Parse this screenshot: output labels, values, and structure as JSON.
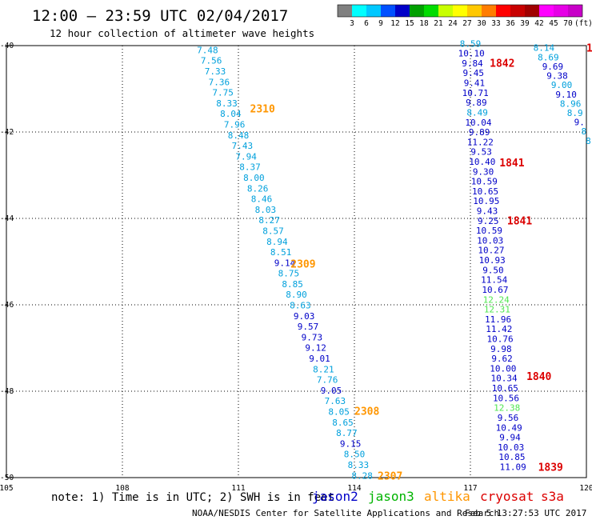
{
  "header": {
    "title": "12:00 – 23:59 UTC 02/04/2017",
    "subtitle": "12 hour collection of altimeter wave heights"
  },
  "legend": {
    "colors": [
      "#808080",
      "#00ffff",
      "#00c8ff",
      "#0050ff",
      "#0000c8",
      "#00a000",
      "#00dc00",
      "#c8ff00",
      "#ffff00",
      "#ffc800",
      "#ff7d00",
      "#ff0000",
      "#c80000",
      "#a00000",
      "#ff00ff",
      "#e600e6",
      "#c800c8"
    ],
    "ticks": [
      "3",
      "6",
      "9",
      "12",
      "15",
      "18",
      "21",
      "24",
      "27",
      "30",
      "33",
      "36",
      "39",
      "42",
      "45",
      "70"
    ],
    "unit": "(ft)"
  },
  "map": {
    "lon_ticks": [
      "105",
      "108",
      "111",
      "114",
      "117",
      "120"
    ],
    "lat_ticks": [
      "-40",
      "-42",
      "-44",
      "-46",
      "-48",
      "-50"
    ],
    "grid": "dotted",
    "lon_range": [
      105,
      120
    ],
    "lat_range": [
      -50,
      -40
    ]
  },
  "satellite_colors": {
    "jason2": "#0000c8",
    "jason3": "#00b400",
    "altika": "#ff9600",
    "cryosat": "#dc0000",
    "s3a": "#dc0000",
    "cyan": "#00a0dc",
    "light_green": "#50e650"
  },
  "tracks": [
    {
      "id": "west-track",
      "color_key": "cyan",
      "values": [
        "7.48",
        "7.56",
        "7.33",
        "7.36",
        "7.75",
        "8.33",
        "8.04",
        "7.96",
        "8.48",
        "7.43",
        "7.94",
        "8.37",
        "8.00",
        "8.26",
        "8.46",
        "8.03",
        "8.27",
        "8.57",
        "8.94",
        "8.51",
        "9.14",
        "8.75",
        "8.85",
        "8.90",
        "8.63",
        "9.03",
        "9.57",
        "9.73",
        "9.12",
        "9.01",
        "8.21",
        "7.76",
        "9.05",
        "7.63",
        "8.05",
        "8.65",
        "8.77",
        "9.15",
        "8.50",
        "8.33",
        "8.28"
      ],
      "value_colors": [
        "cyan",
        "cyan",
        "cyan",
        "cyan",
        "cyan",
        "cyan",
        "cyan",
        "cyan",
        "cyan",
        "cyan",
        "cyan",
        "cyan",
        "cyan",
        "cyan",
        "cyan",
        "cyan",
        "cyan",
        "cyan",
        "cyan",
        "cyan",
        "jason2",
        "cyan",
        "cyan",
        "cyan",
        "cyan",
        "jason2",
        "jason2",
        "jason2",
        "jason2",
        "jason2",
        "cyan",
        "cyan",
        "jason2",
        "cyan",
        "cyan",
        "cyan",
        "cyan",
        "jason2",
        "cyan",
        "cyan",
        "cyan"
      ],
      "lon_start": 110.2,
      "lat_start": -40.1,
      "lon_end": 114.2,
      "lat_end": -49.95
    },
    {
      "id": "middle-track",
      "color_key": "jason2",
      "values": [
        "8.59",
        "10.10",
        "9.84",
        "9.45",
        "9.41",
        "10.71",
        "9.89",
        "8.49",
        "10.04",
        "9.89",
        "11.22",
        "9.53",
        "10.40",
        "9.30",
        "10.59",
        "10.65",
        "10.95",
        "9.43",
        "9.25",
        "10.59",
        "10.03",
        "10.27",
        "10.93",
        "9.50",
        "11.54",
        "10.67",
        "12.24",
        "12.31",
        "11.96",
        "11.42",
        "10.76",
        "9.98",
        "9.62",
        "10.00",
        "10.34",
        "10.65",
        "10.56",
        "12.38",
        "9.56",
        "10.49",
        "9.94",
        "10.03",
        "10.85",
        "11.09"
      ],
      "value_colors": [
        "cyan",
        "jason2",
        "jason2",
        "jason2",
        "jason2",
        "jason2",
        "jason2",
        "cyan",
        "jason2",
        "jason2",
        "jason2",
        "jason2",
        "jason2",
        "jason2",
        "jason2",
        "jason2",
        "jason2",
        "jason2",
        "jason2",
        "jason2",
        "jason2",
        "jason2",
        "jason2",
        "jason2",
        "jason2",
        "jason2",
        "light_green",
        "light_green",
        "jason2",
        "jason2",
        "jason2",
        "jason2",
        "jason2",
        "jason2",
        "jason2",
        "jason2",
        "jason2",
        "light_green",
        "jason2",
        "jason2",
        "jason2",
        "jason2",
        "jason2",
        "jason2"
      ],
      "lon_start": 117.0,
      "lat_start": -39.95,
      "lon_end": 118.1,
      "lat_end": -49.75
    },
    {
      "id": "east-track",
      "color_key": "jason2",
      "values": [
        "8.14",
        "8.69",
        "9.69",
        "9.38",
        "9.00",
        "9.10",
        "8.96",
        "8.9",
        "9.",
        "8",
        "8"
      ],
      "value_colors": [
        "cyan",
        "cyan",
        "jason2",
        "jason2",
        "cyan",
        "jason2",
        "cyan",
        "cyan",
        "jason2",
        "cyan",
        "cyan"
      ],
      "lon_start": 118.9,
      "lat_start": -40.05,
      "lon_end": 120.05,
      "lat_end": -42.2
    }
  ],
  "pass_labels": [
    {
      "text": "2310",
      "color_key": "altika",
      "lon": 111.3,
      "lat": -41.45
    },
    {
      "text": "2309",
      "color_key": "altika",
      "lon": 112.35,
      "lat": -45.05
    },
    {
      "text": "2308",
      "color_key": "altika",
      "lon": 114.0,
      "lat": -48.45
    },
    {
      "text": "2307",
      "color_key": "altika",
      "lon": 114.6,
      "lat": -49.95
    },
    {
      "text": "1842",
      "color_key": "cryosat",
      "lon": 117.5,
      "lat": -40.4
    },
    {
      "text": "1841",
      "color_key": "cryosat",
      "lon": 117.75,
      "lat": -42.7
    },
    {
      "text": "1841",
      "color_key": "cryosat",
      "lon": 117.95,
      "lat": -44.05
    },
    {
      "text": "1840",
      "color_key": "cryosat",
      "lon": 118.45,
      "lat": -47.65
    },
    {
      "text": "1839",
      "color_key": "cryosat",
      "lon": 118.75,
      "lat": -49.75
    },
    {
      "text": "1",
      "color_key": "cryosat",
      "lon": 120.0,
      "lat": -40.05
    }
  ],
  "footer": {
    "note": "note:  1) Time is in UTC; 2) SWH is in feet",
    "satellites": [
      {
        "name": "jason2",
        "color_key": "jason2"
      },
      {
        "name": "jason3",
        "color_key": "jason3"
      },
      {
        "name": "altika",
        "color_key": "altika"
      },
      {
        "name": "cryosat",
        "color_key": "cryosat"
      },
      {
        "name": "s3a",
        "color_key": "s3a"
      }
    ],
    "credit": "NOAA/NESDIS Center for Satellite Applications and Research",
    "timestamp": "Feb  5 13:27:53 UTC 2017"
  }
}
